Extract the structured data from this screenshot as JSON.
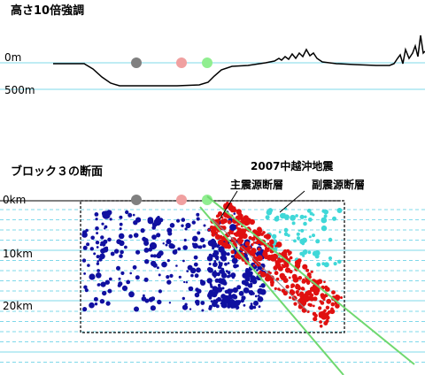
{
  "top_title": "高さ10倍強調",
  "top_axis": {
    "zero_label": "0m",
    "bottom_label": "500m"
  },
  "section_title": "ブロック３の断面",
  "depth_axis": {
    "labels": [
      "0km",
      "10km",
      "20km"
    ]
  },
  "earthquake": {
    "title": "2007中越沖地震",
    "main_fault": "主震源断層",
    "sub_fault": "副震源断層"
  },
  "colors": {
    "cyan_line": "#7fd8ea",
    "dashed_line": "#7fd8ea",
    "station_gray": "#808080",
    "station_pink": "#f0a0a0",
    "station_green": "#90ee90",
    "main_fault_line": "#6fd86f",
    "cluster_blue": "#1010a0",
    "cluster_red": "#e01010",
    "cluster_cyan": "#40d8d8"
  },
  "stations": [
    {
      "name": "gray-station",
      "color": "#808080"
    },
    {
      "name": "pink-station",
      "color": "#f0a0a0"
    },
    {
      "name": "green-station",
      "color": "#90ee90"
    }
  ]
}
